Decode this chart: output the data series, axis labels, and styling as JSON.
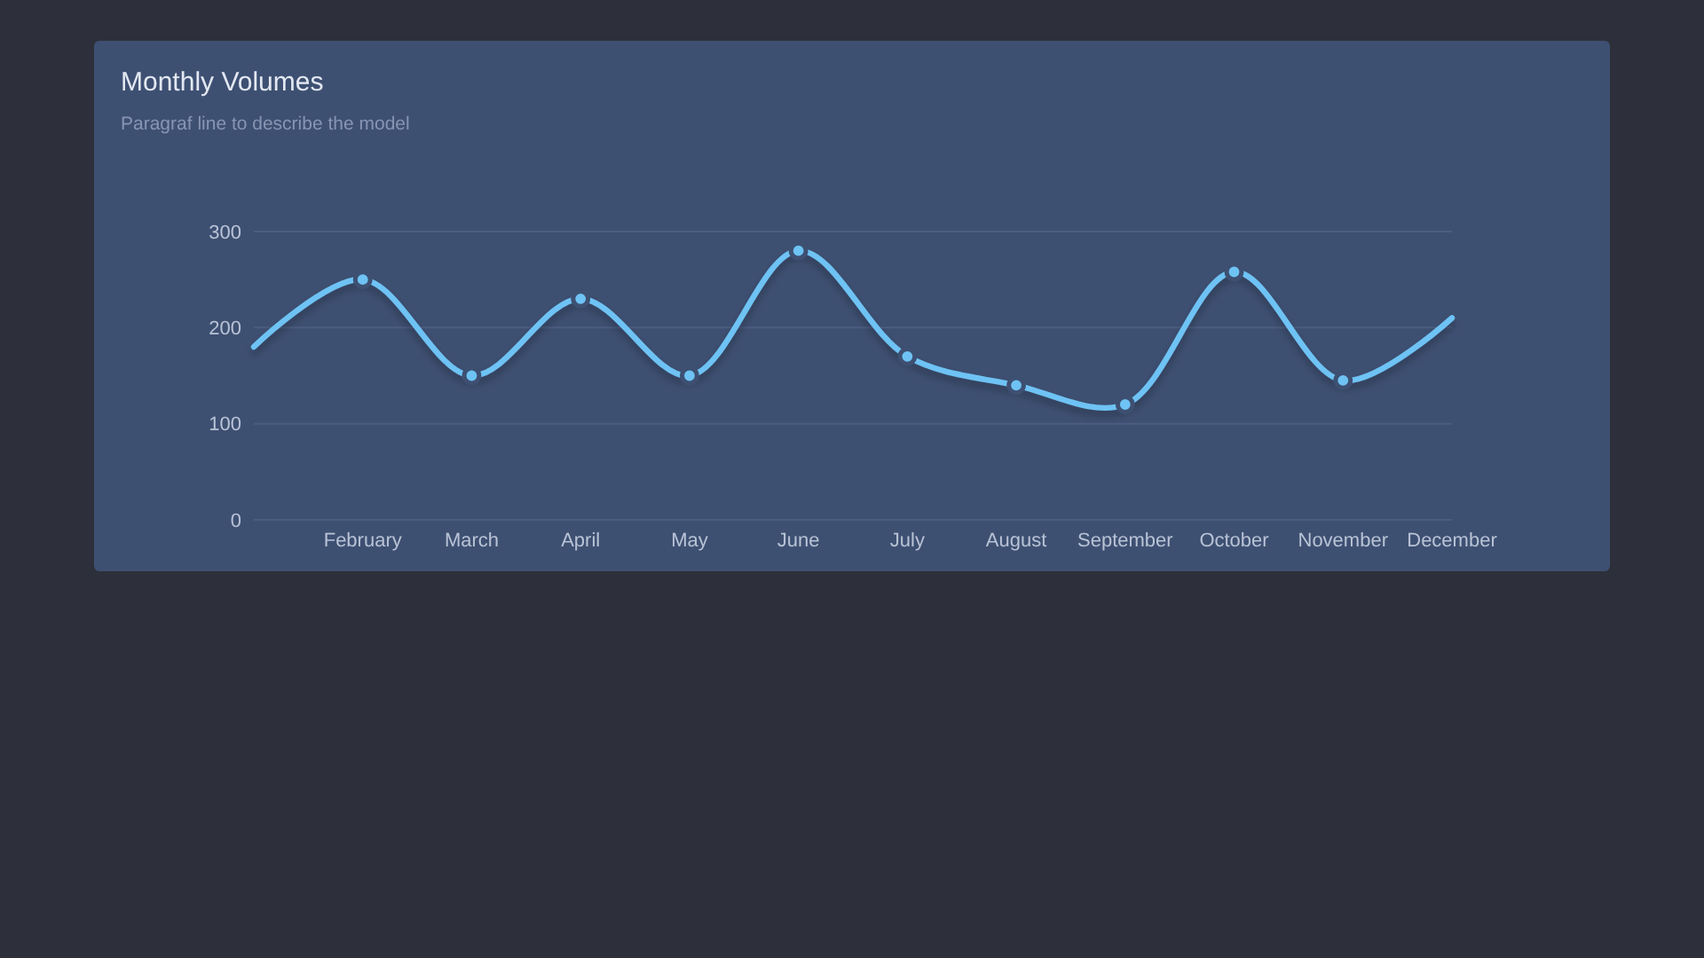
{
  "chart_data": {
    "type": "line",
    "title": "Monthly Volumes",
    "subtitle": "Paragraf line to describe the model",
    "categories": [
      null,
      "February",
      "March",
      "April",
      "May",
      "June",
      "July",
      "August",
      "September",
      "October",
      "November",
      "December"
    ],
    "series": [
      {
        "color": "#6ec3f4",
        "values": [
          180,
          250,
          150,
          230,
          150,
          280,
          170,
          140,
          120,
          258,
          145,
          210
        ]
      }
    ],
    "ylim": [
      0,
      300
    ],
    "yticks": [
      0,
      100,
      200,
      300
    ],
    "grid": "y",
    "marker": "circle"
  }
}
